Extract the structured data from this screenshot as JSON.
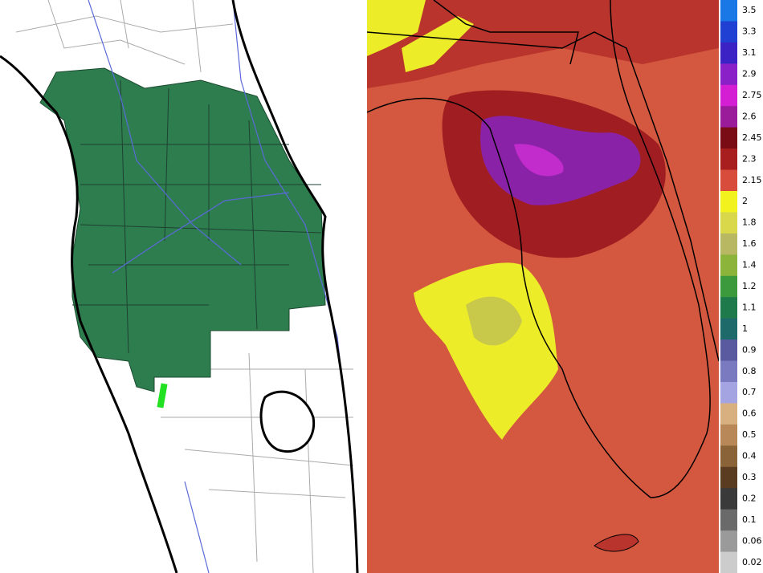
{
  "legend": {
    "items": [
      {
        "label": "3.5",
        "color": "#1a78e6"
      },
      {
        "label": "3.3",
        "color": "#1f40d2"
      },
      {
        "label": "3.1",
        "color": "#3a22c4"
      },
      {
        "label": "2.9",
        "color": "#8a20c8"
      },
      {
        "label": "2.75",
        "color": "#d41ed4"
      },
      {
        "label": "2.6",
        "color": "#9a1c9a"
      },
      {
        "label": "2.45",
        "color": "#7a0c16"
      },
      {
        "label": "2.3",
        "color": "#a81e1e"
      },
      {
        "label": "2.15",
        "color": "#d84c3c"
      },
      {
        "label": "2",
        "color": "#f2f21e"
      },
      {
        "label": "1.8",
        "color": "#d8d84a"
      },
      {
        "label": "1.6",
        "color": "#b8b862"
      },
      {
        "label": "1.4",
        "color": "#8cb43a"
      },
      {
        "label": "1.2",
        "color": "#3c9a3c"
      },
      {
        "label": "1.1",
        "color": "#1e7a4a"
      },
      {
        "label": "1",
        "color": "#1e6a6a"
      },
      {
        "label": "0.9",
        "color": "#5a5aa0"
      },
      {
        "label": "0.8",
        "color": "#7a7ac0"
      },
      {
        "label": "0.7",
        "color": "#a4a4e2"
      },
      {
        "label": "0.6",
        "color": "#d8b080"
      },
      {
        "label": "0.5",
        "color": "#b88858"
      },
      {
        "label": "0.4",
        "color": "#8a6438"
      },
      {
        "label": "0.3",
        "color": "#5a3c20"
      },
      {
        "label": "0.2",
        "color": "#3a3a3a"
      },
      {
        "label": "0.1",
        "color": "#6a6a6a"
      },
      {
        "label": "0.06",
        "color": "#9a9a9a"
      },
      {
        "label": "0.02",
        "color": "#cccccc"
      }
    ]
  }
}
